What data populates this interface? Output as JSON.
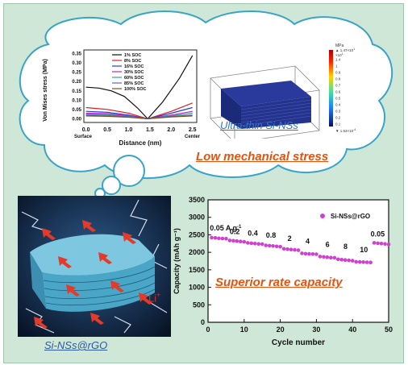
{
  "stress_panel": {
    "ylabel": "Von Mises stress (MPa)",
    "xlabel": "Distance (nm)",
    "x_ticks": [
      "0.0",
      "0.5",
      "1.0",
      "1.5",
      "2.0",
      "2.5"
    ],
    "y_ticks": [
      "0.00",
      "0.05",
      "0.10",
      "0.15",
      "0.20",
      "0.25",
      "0.30",
      "0.35"
    ],
    "surface_label": "Surface",
    "center_label": "Center",
    "legend": [
      "1% SOC",
      "8% SOC",
      "16% SOC",
      "30% SOC",
      "60% SOC",
      "85% SOC",
      "100% SOC"
    ],
    "colors": [
      "#111111",
      "#e02020",
      "#2040d0",
      "#c020c0",
      "#30a0a0",
      "#6060c0",
      "#7a5020"
    ]
  },
  "model_panel": {
    "caption": "Ultra-thin Si-NSs",
    "colorbar_title": "MPa",
    "colorbar_top": "▲ 1.47×10",
    "colorbar_top_exp": "1",
    "colorbar_exp": "×10",
    "colorbar_exp_pow": "1",
    "colorbar_ticks": [
      "1.4",
      "1",
      "0.9",
      "0.8",
      "0.7",
      "0.6",
      "0.5",
      "0.4",
      "0.3",
      "0.2",
      "0.1"
    ],
    "colorbar_bottom": "▼ 1.53×10",
    "colorbar_bottom_exp": "-4"
  },
  "headline": "Low mechanical stress",
  "material_panel": {
    "caption": "Si-NSs@rGO",
    "ion_label": "Li",
    "ion_charge": "+"
  },
  "rate_caption": "Superior rate capacity",
  "chart_data": {
    "type": "scatter",
    "ylabel": "Capacity (mAh g⁻¹)",
    "xlabel": "Cycle number",
    "xlim": [
      0,
      50
    ],
    "ylim": [
      0,
      3500
    ],
    "x_ticks": [
      0,
      10,
      20,
      30,
      40,
      50
    ],
    "y_ticks": [
      0,
      500,
      1000,
      1500,
      2000,
      2500,
      3000,
      3500
    ],
    "series": [
      {
        "name": "Si-NSs@rGO",
        "color": "#d040d0",
        "x": [
          1,
          2,
          3,
          4,
          5,
          6,
          7,
          8,
          9,
          10,
          11,
          12,
          13,
          14,
          15,
          16,
          17,
          18,
          19,
          20,
          21,
          22,
          23,
          24,
          25,
          26,
          27,
          28,
          29,
          30,
          31,
          32,
          33,
          34,
          35,
          36,
          37,
          38,
          39,
          40,
          41,
          42,
          43,
          44,
          45,
          46,
          47,
          48,
          49,
          50
        ],
        "y": [
          2420,
          2410,
          2400,
          2395,
          2390,
          2340,
          2330,
          2320,
          2310,
          2300,
          2270,
          2260,
          2250,
          2240,
          2235,
          2200,
          2190,
          2180,
          2170,
          2160,
          2100,
          2090,
          2080,
          2070,
          2060,
          1970,
          1960,
          1955,
          1950,
          1945,
          1880,
          1870,
          1860,
          1850,
          1845,
          1800,
          1790,
          1780,
          1770,
          1760,
          1730,
          1725,
          1720,
          1715,
          1710,
          2270,
          2260,
          2250,
          2240,
          2230
        ]
      }
    ],
    "annotations": [
      {
        "text": "0.05 A g",
        "sup": "-1",
        "x": 0.5,
        "y": 2620
      },
      {
        "text": "0.2",
        "x": 6,
        "y": 2520
      },
      {
        "text": "0.4",
        "x": 11,
        "y": 2480
      },
      {
        "text": "0.8",
        "x": 16,
        "y": 2420
      },
      {
        "text": "2",
        "x": 22,
        "y": 2330
      },
      {
        "text": "4",
        "x": 27,
        "y": 2250
      },
      {
        "text": "6",
        "x": 32.5,
        "y": 2150
      },
      {
        "text": "8",
        "x": 37.5,
        "y": 2090
      },
      {
        "text": "10",
        "x": 42,
        "y": 2000
      },
      {
        "text": "0.05",
        "x": 45,
        "y": 2450
      }
    ]
  }
}
